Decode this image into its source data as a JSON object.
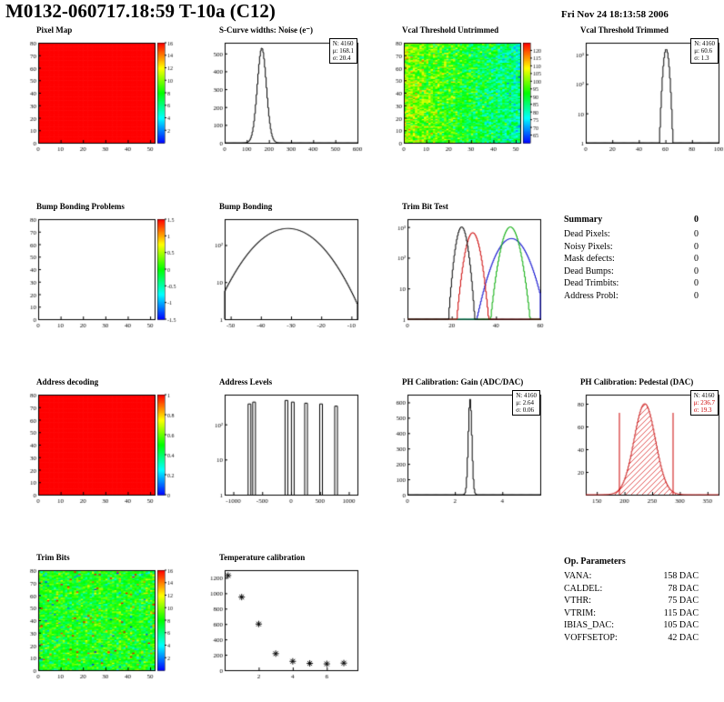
{
  "header": {
    "title": "M0132-060717.18:59 T-10a (C12)",
    "date": "Fri Nov 24 18:13:58 2006"
  },
  "summary": {
    "title": "Summary",
    "value": "0",
    "rows": [
      {
        "label": "Dead Pixels:",
        "value": "0"
      },
      {
        "label": "Noisy Pixels:",
        "value": "0"
      },
      {
        "label": "Mask defects:",
        "value": "0"
      },
      {
        "label": "Dead Bumps:",
        "value": "0"
      },
      {
        "label": "Dead Trimbits:",
        "value": "0"
      },
      {
        "label": "Address Probl:",
        "value": "0"
      }
    ]
  },
  "op_parameters": {
    "title": "Op. Parameters",
    "rows": [
      {
        "label": "VANA:",
        "value": "158 DAC"
      },
      {
        "label": "CALDEL:",
        "value": "78 DAC"
      },
      {
        "label": "VTHR:",
        "value": "75 DAC"
      },
      {
        "label": "VTRIM:",
        "value": "115 DAC"
      },
      {
        "label": "IBIAS_DAC:",
        "value": "105 DAC"
      },
      {
        "label": "VOFFSETOP:",
        "value": "42 DAC"
      }
    ]
  },
  "chart_data": [
    {
      "id": "pixel-map",
      "type": "heatmap",
      "title": "Pixel Map",
      "x_range": [
        0,
        52
      ],
      "x_ticks": [
        0,
        10,
        20,
        30,
        40,
        50
      ],
      "y_range": [
        0,
        80
      ],
      "y_ticks": [
        0,
        10,
        20,
        30,
        40,
        50,
        60,
        70,
        80
      ],
      "cells": "uniform-high",
      "colorbar_range": [
        0,
        16
      ],
      "colorbar_ticks": [
        16,
        14,
        12,
        10,
        8,
        6,
        4,
        2
      ]
    },
    {
      "id": "scurve-noise",
      "type": "hist",
      "title": "S-Curve widths: Noise (e⁻)",
      "x_range": [
        0,
        600
      ],
      "x_ticks": [
        0,
        100,
        200,
        300,
        400,
        500,
        600
      ],
      "y_range": [
        0,
        560
      ],
      "y_ticks": [
        0,
        100,
        200,
        300,
        400,
        500
      ],
      "yscale": "linear",
      "mu": 168.1,
      "sigma": 20.4,
      "peak": 530,
      "stats": [
        "N: 4160",
        "μ: 168.1",
        "σ: 20.4"
      ]
    },
    {
      "id": "vcal-threshold-untrimmed",
      "type": "heatmap",
      "title": "Vcal Threshold Untrimmed",
      "x_range": [
        0,
        52
      ],
      "x_ticks": [
        0,
        10,
        20,
        30,
        40,
        50
      ],
      "y_range": [
        0,
        80
      ],
      "y_ticks": [
        0,
        10,
        20,
        30,
        40,
        50,
        60,
        70,
        80
      ],
      "cells": "noise",
      "noise": {
        "mean": 102,
        "sigma": 8,
        "x_gradient": -20
      },
      "colorbar_range": [
        60,
        125
      ],
      "colorbar_ticks": [
        120,
        115,
        110,
        105,
        100,
        95,
        90,
        85,
        80,
        75,
        70,
        65
      ]
    },
    {
      "id": "vcal-threshold-trimmed",
      "type": "hist",
      "title": "Vcal Threshold Trimmed",
      "x_range": [
        0,
        100
      ],
      "x_ticks": [
        0,
        20,
        40,
        60,
        80,
        100
      ],
      "yscale": "log",
      "y_max": 2500,
      "mu": 60.6,
      "sigma": 1.3,
      "peak": 1500,
      "stats": [
        "N: 4160",
        "μ: 60.6",
        "σ: 1.3"
      ]
    },
    {
      "id": "bump-bonding-problems",
      "type": "heatmap",
      "title": "Bump Bonding Problems",
      "x_range": [
        0,
        52
      ],
      "x_ticks": [
        0,
        10,
        20,
        30,
        40,
        50
      ],
      "y_range": [
        0,
        80
      ],
      "y_ticks": [
        0,
        10,
        20,
        30,
        40,
        50,
        60,
        70,
        80
      ],
      "cells": "empty",
      "colorbar_range": [
        -1.5,
        1.5
      ],
      "colorbar_ticks": [
        1.5,
        1,
        0.5,
        0,
        -0.5,
        -1,
        -1.5
      ]
    },
    {
      "id": "bump-bonding",
      "type": "hist",
      "title": "Bump Bonding",
      "x_range": [
        -52,
        -8
      ],
      "x_ticks": [
        -50,
        -40,
        -30,
        -20,
        -10
      ],
      "yscale": "log",
      "y_max": 500,
      "mu": -31,
      "sigma": 7.5,
      "peak": 280,
      "extra_bins": [
        [
          -12,
          1.5
        ]
      ]
    },
    {
      "id": "trim-bit-test",
      "type": "hist-multi",
      "title": "Trim Bit Test",
      "x_range": [
        0,
        60
      ],
      "x_ticks": [
        0,
        20,
        40,
        60
      ],
      "yscale": "log",
      "y_max": 1800,
      "series": [
        {
          "name": "trim-bits-blue",
          "color": "#0000cc",
          "mu": 47,
          "sigma": 4.5,
          "peak": 420
        },
        {
          "name": "trim-bits-green",
          "color": "#00aa00",
          "mu": 46.5,
          "sigma": 2.4,
          "peak": 1000
        },
        {
          "name": "trim-bits-red",
          "color": "#cc0000",
          "mu": 29.5,
          "sigma": 2,
          "peak": 650
        },
        {
          "name": "trim-bits-black",
          "color": "#000000",
          "mu": 24.5,
          "sigma": 1.6,
          "peak": 1000
        }
      ]
    },
    {
      "id": "address-decoding",
      "type": "heatmap",
      "title": "Address decoding",
      "x_range": [
        0,
        52
      ],
      "x_ticks": [
        0,
        10,
        20,
        30,
        40,
        50
      ],
      "y_range": [
        0,
        80
      ],
      "y_ticks": [
        0,
        10,
        20,
        30,
        40,
        50,
        60,
        70,
        80
      ],
      "cells": "uniform-high",
      "colorbar_range": [
        0,
        1
      ],
      "colorbar_ticks": [
        1,
        0.8,
        0.6,
        0.4,
        0.2,
        0
      ]
    },
    {
      "id": "address-levels",
      "type": "spikes",
      "title": "Address Levels",
      "x_range": [
        -1150,
        1150
      ],
      "x_ticks": [
        -1000,
        -500,
        0,
        500,
        1000
      ],
      "yscale": "log",
      "y_max": 700,
      "spikes": [
        [
          -720,
          380
        ],
        [
          -640,
          430
        ],
        [
          -80,
          480
        ],
        [
          30,
          430
        ],
        [
          260,
          400
        ],
        [
          520,
          380
        ],
        [
          780,
          330
        ]
      ]
    },
    {
      "id": "ph-calibration-gain",
      "type": "hist",
      "title": "PH Calibration: Gain (ADC/DAC)",
      "x_range": [
        0,
        5.6
      ],
      "x_ticks": [
        0,
        2,
        4
      ],
      "y_range": [
        0,
        650
      ],
      "y_ticks": [
        0,
        100,
        200,
        300,
        400,
        500,
        600
      ],
      "yscale": "linear",
      "mu": 2.64,
      "sigma": 0.06,
      "peak": 620,
      "stats": [
        "N: 4160",
        "μ: 2.64",
        "σ: 0.06"
      ]
    },
    {
      "id": "ph-calibration-pedestal",
      "type": "hist",
      "title": "PH Calibration: Pedestal (DAC)",
      "x_range": [
        130,
        370
      ],
      "x_ticks": [
        150,
        200,
        250,
        300,
        350
      ],
      "y_range": [
        0,
        88
      ],
      "y_ticks": [
        20,
        40,
        60,
        80
      ],
      "yscale": "linear",
      "mu": 236.7,
      "sigma": 19.3,
      "peak": 80,
      "color": "#cc2222",
      "fill": "hatch-red",
      "cut_lines": [
        190,
        287
      ],
      "cut_color": "#cc0000",
      "stats": [
        "N: 4160",
        "μ: 236.7",
        "σ: 19.3"
      ]
    },
    {
      "id": "trim-bits",
      "type": "heatmap",
      "title": "Trim Bits",
      "x_range": [
        0,
        52
      ],
      "x_ticks": [
        0,
        10,
        20,
        30,
        40,
        50
      ],
      "y_range": [
        0,
        80
      ],
      "y_ticks": [
        0,
        10,
        20,
        30,
        40,
        50,
        60,
        70,
        80
      ],
      "cells": "noise",
      "noise": {
        "mean": 8,
        "sigma": 1.6,
        "x_gradient": 0
      },
      "colorbar_range": [
        0,
        16
      ],
      "colorbar_ticks": [
        16,
        14,
        12,
        10,
        8,
        6,
        4,
        2
      ]
    },
    {
      "id": "temperature-calibration",
      "type": "scatter",
      "title": "Temperature calibration",
      "x_range": [
        0,
        7.8
      ],
      "x_ticks": [
        2,
        4,
        6
      ],
      "y_range": [
        0,
        1300
      ],
      "y_ticks": [
        0,
        200,
        400,
        600,
        800,
        1000,
        1200
      ],
      "points": [
        [
          0.2,
          1230
        ],
        [
          1,
          950
        ],
        [
          2,
          600
        ],
        [
          3,
          215
        ],
        [
          4,
          115
        ],
        [
          5,
          88
        ],
        [
          6,
          82
        ],
        [
          7,
          92
        ]
      ]
    }
  ]
}
